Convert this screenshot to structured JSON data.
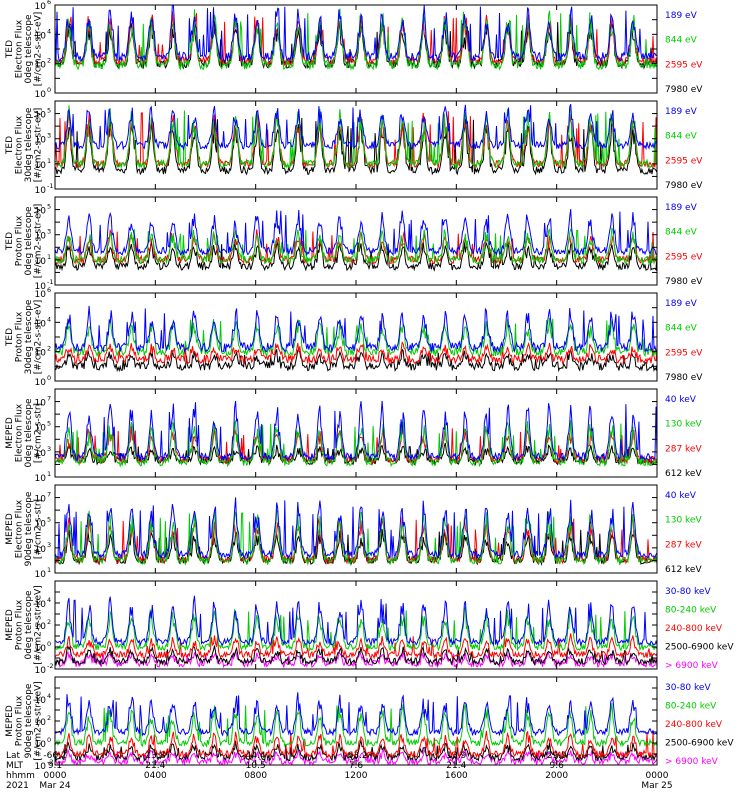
{
  "chart_data": [
    {
      "type": "line",
      "panel": 1,
      "ylabel_lines": [
        "TED",
        "Electron Flux",
        "0deg telescope",
        "[#/cm2-s-str-eV]"
      ],
      "yscale": "log",
      "ylim": [
        1,
        1000000
      ],
      "yticks": [
        {
          "label": "10",
          "exp": "0",
          "value": 1
        },
        {
          "label": "10",
          "exp": "2",
          "value": 100
        },
        {
          "label": "10",
          "exp": "4",
          "value": 10000
        },
        {
          "label": "10",
          "exp": "6",
          "value": 1000000
        }
      ],
      "series": [
        {
          "name": "7980 eV",
          "color": "#000000",
          "base": 100,
          "peak": 100000
        },
        {
          "name": "2595 eV",
          "color": "#ff0000",
          "base": 150,
          "peak": 300000
        },
        {
          "name": "844 eV",
          "color": "#00cc00",
          "base": 80,
          "peak": 500000
        },
        {
          "name": "189 eV",
          "color": "#0000ff",
          "base": 300,
          "peak": 900000
        }
      ]
    },
    {
      "type": "line",
      "panel": 2,
      "ylabel_lines": [
        "TED",
        "Electron Flux",
        "30deg telescope",
        "[#/cm2-s-str-eV]"
      ],
      "yscale": "log",
      "ylim": [
        0.1,
        1000000
      ],
      "yticks": [
        {
          "label": "10",
          "exp": "-1",
          "value": 0.1
        },
        {
          "label": "10",
          "exp": "1",
          "value": 10
        },
        {
          "label": "10",
          "exp": "3",
          "value": 1000
        },
        {
          "label": "10",
          "exp": "5",
          "value": 100000
        }
      ],
      "series": [
        {
          "name": "7980 eV",
          "color": "#000000",
          "base": 3,
          "peak": 50000
        },
        {
          "name": "2595 eV",
          "color": "#ff0000",
          "base": 10,
          "peak": 200000
        },
        {
          "name": "844 eV",
          "color": "#00cc00",
          "base": 10,
          "peak": 300000
        },
        {
          "name": "189 eV",
          "color": "#0000ff",
          "base": 300,
          "peak": 500000
        }
      ]
    },
    {
      "type": "line",
      "panel": 3,
      "ylabel_lines": [
        "TED",
        "Proton Flux",
        "0deg telescope",
        "[#/cm2-s-str-eV]"
      ],
      "yscale": "log",
      "ylim": [
        0.1,
        1000000
      ],
      "yticks": [
        {
          "label": "10",
          "exp": "-1",
          "value": 0.1
        },
        {
          "label": "10",
          "exp": "1",
          "value": 10
        },
        {
          "label": "10",
          "exp": "3",
          "value": 1000
        },
        {
          "label": "10",
          "exp": "5",
          "value": 100000
        }
      ],
      "series": [
        {
          "name": "7980 eV",
          "color": "#000000",
          "base": 3,
          "peak": 300
        },
        {
          "name": "2595 eV",
          "color": "#ff0000",
          "base": 10,
          "peak": 2000
        },
        {
          "name": "844 eV",
          "color": "#00cc00",
          "base": 10,
          "peak": 3000
        },
        {
          "name": "189 eV",
          "color": "#0000ff",
          "base": 50,
          "peak": 100000
        }
      ]
    },
    {
      "type": "line",
      "panel": 4,
      "ylabel_lines": [
        "TED",
        "Proton Flux",
        "30deg telescope",
        "[#/cm2-s-str-eV]"
      ],
      "yscale": "log",
      "ylim": [
        1,
        1000000
      ],
      "yticks": [
        {
          "label": "10",
          "exp": "0",
          "value": 1
        },
        {
          "label": "10",
          "exp": "2",
          "value": 100
        },
        {
          "label": "10",
          "exp": "4",
          "value": 10000
        },
        {
          "label": "10",
          "exp": "6",
          "value": 1000000
        }
      ],
      "series": [
        {
          "name": "7980 eV",
          "color": "#000000",
          "base": 10,
          "peak": 100
        },
        {
          "name": "2595 eV",
          "color": "#ff0000",
          "base": 30,
          "peak": 300
        },
        {
          "name": "844 eV",
          "color": "#00cc00",
          "base": 100,
          "peak": 20000
        },
        {
          "name": "189 eV",
          "color": "#0000ff",
          "base": 200,
          "peak": 100000
        }
      ]
    },
    {
      "type": "line",
      "panel": 5,
      "ylabel_lines": [
        "MEPED",
        "Electron Flux",
        "0deg telescope",
        "[#/cm2-s-str]"
      ],
      "yscale": "log",
      "ylim": [
        10,
        100000000
      ],
      "yticks": [
        {
          "label": "10",
          "exp": "1",
          "value": 10
        },
        {
          "label": "10",
          "exp": "3",
          "value": 1000
        },
        {
          "label": "10",
          "exp": "5",
          "value": 100000
        },
        {
          "label": "10",
          "exp": "7",
          "value": 10000000
        }
      ],
      "series": [
        {
          "name": "612 keV",
          "color": "#000000",
          "base": 200,
          "peak": 3000
        },
        {
          "name": "287 keV",
          "color": "#ff0000",
          "base": 250,
          "peak": 100000
        },
        {
          "name": "130 keV",
          "color": "#00cc00",
          "base": 150,
          "peak": 300000
        },
        {
          "name": "40 keV",
          "color": "#0000ff",
          "base": 400,
          "peak": 10000000
        }
      ]
    },
    {
      "type": "line",
      "panel": 6,
      "ylabel_lines": [
        "MEPED",
        "Electron Flux",
        "90deg telescope",
        "[#/cm2-s-str]"
      ],
      "yscale": "log",
      "ylim": [
        10,
        100000000
      ],
      "yticks": [
        {
          "label": "10",
          "exp": "1",
          "value": 10
        },
        {
          "label": "10",
          "exp": "3",
          "value": 1000
        },
        {
          "label": "10",
          "exp": "5",
          "value": 100000
        },
        {
          "label": "10",
          "exp": "7",
          "value": 10000000
        }
      ],
      "series": [
        {
          "name": "612 keV",
          "color": "#000000",
          "base": 100,
          "peak": 30000
        },
        {
          "name": "287 keV",
          "color": "#ff0000",
          "base": 120,
          "peak": 300000
        },
        {
          "name": "130 keV",
          "color": "#00cc00",
          "base": 100,
          "peak": 1000000
        },
        {
          "name": "40 keV",
          "color": "#0000ff",
          "base": 300,
          "peak": 10000000
        }
      ]
    },
    {
      "type": "line",
      "panel": 7,
      "ylabel_lines": [
        "MEPED",
        "Proton Flux",
        "0deg telescope",
        "[#/cm2-s-str-keV]"
      ],
      "yscale": "log",
      "ylim": [
        0.01,
        1000000
      ],
      "yticks": [
        {
          "label": "10",
          "exp": "-2",
          "value": 0.01
        },
        {
          "label": "10",
          "exp": "0",
          "value": 1
        },
        {
          "label": "10",
          "exp": "2",
          "value": 100
        },
        {
          "label": "10",
          "exp": "4",
          "value": 10000
        }
      ],
      "series": [
        {
          "name": "> 6900 keV",
          "color": "#ff00ff",
          "base": 0.03,
          "peak": 0.3
        },
        {
          "name": "2500-6900 keV",
          "color": "#000000",
          "base": 0.05,
          "peak": 1
        },
        {
          "name": "240-800 keV",
          "color": "#ff0000",
          "base": 0.2,
          "peak": 10
        },
        {
          "name": "80-240 keV",
          "color": "#00cc00",
          "base": 1,
          "peak": 3000
        },
        {
          "name": "30-80 keV",
          "color": "#0000ff",
          "base": 3,
          "peak": 30000
        }
      ]
    },
    {
      "type": "line",
      "panel": 8,
      "ylabel_lines": [
        "MEPED",
        "Proton Flux",
        "90deg telescope",
        "[#/cm2-s-str-keV]"
      ],
      "yscale": "log",
      "ylim": [
        0.01,
        1000000
      ],
      "yticks": [
        {
          "label": "10",
          "exp": "-2",
          "value": 0.01
        },
        {
          "label": "10",
          "exp": "0",
          "value": 1
        },
        {
          "label": "10",
          "exp": "2",
          "value": 100
        },
        {
          "label": "10",
          "exp": "4",
          "value": 10000
        }
      ],
      "series": [
        {
          "name": "> 6900 keV",
          "color": "#ff00ff",
          "base": 0.02,
          "peak": 0.2
        },
        {
          "name": "2500-6900 keV",
          "color": "#000000",
          "base": 0.05,
          "peak": 1
        },
        {
          "name": "240-800 keV",
          "color": "#ff0000",
          "base": 0.1,
          "peak": 10
        },
        {
          "name": "80-240 keV",
          "color": "#00cc00",
          "base": 1,
          "peak": 3000
        },
        {
          "name": "30-80 keV",
          "color": "#0000ff",
          "base": 10,
          "peak": 30000
        }
      ]
    }
  ],
  "x_axis": {
    "row_labels": [
      "Lat",
      "MLT",
      "hhmm",
      "2021"
    ],
    "ticks": [
      {
        "hours": 0,
        "lat": "-66.2",
        "mlt": "9.1",
        "hhmm": "0000",
        "date": "Mar 24"
      },
      {
        "hours": 4,
        "lat": "13.8",
        "mlt": "21.4",
        "hhmm": "0400",
        "date": ""
      },
      {
        "hours": 8,
        "lat": "44.4",
        "mlt": "10.5",
        "hhmm": "0800",
        "date": ""
      },
      {
        "hours": 12,
        "lat": "-63.2",
        "mlt": "7.6",
        "hhmm": "1200",
        "date": ""
      },
      {
        "hours": 16,
        "lat": "13.9",
        "mlt": "21.4",
        "hhmm": "1600",
        "date": ""
      },
      {
        "hours": 20,
        "lat": "29.0",
        "mlt": "9.6",
        "hhmm": "2000",
        "date": ""
      },
      {
        "hours": 24,
        "lat": "",
        "mlt": "",
        "hhmm": "0000",
        "date": "Mar 25"
      }
    ],
    "xlim_hours": [
      0,
      24
    ],
    "pass_peaks_hours": [
      0.55,
      1.35,
      2.2,
      3.05,
      3.85,
      4.7,
      5.55,
      6.35,
      7.2,
      8.05,
      8.85,
      9.7,
      10.55,
      11.35,
      12.2,
      13.05,
      13.85,
      14.7,
      15.55,
      16.35,
      17.2,
      18.05,
      18.85,
      19.7,
      20.55,
      21.35,
      22.2,
      23.05
    ]
  }
}
